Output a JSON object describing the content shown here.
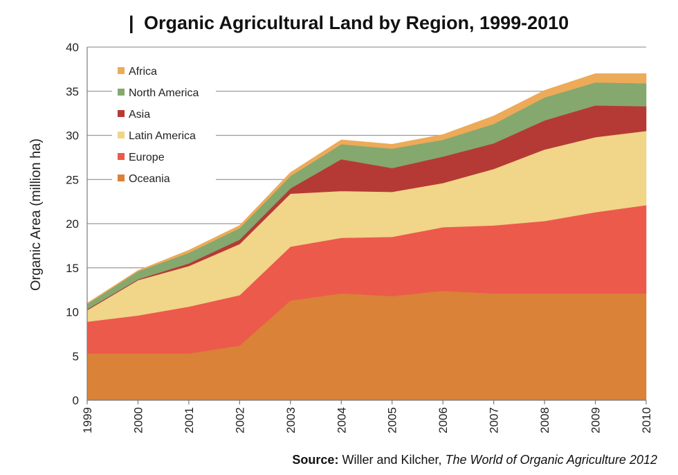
{
  "chart_data": {
    "type": "area",
    "stacked": true,
    "title_bar": "|",
    "title": "Organic Agricultural Land by Region, 1999-2010",
    "xlabel": "",
    "ylabel": "Organic Area (million ha)",
    "x": [
      "1999",
      "2000",
      "2001",
      "2002",
      "2003",
      "2004",
      "2005",
      "2006",
      "2007",
      "2008",
      "2009",
      "2010"
    ],
    "ylim": [
      0,
      40
    ],
    "yticks": [
      "0",
      "5",
      "10",
      "15",
      "20",
      "25",
      "30",
      "35",
      "40"
    ],
    "grid": true,
    "legend_position": "top-left",
    "series": [
      {
        "name": "Oceania",
        "color": "#D98238",
        "values": [
          5.3,
          5.3,
          5.3,
          6.2,
          11.3,
          12.1,
          11.8,
          12.4,
          12.1,
          12.1,
          12.1,
          12.1
        ]
      },
      {
        "name": "Europe",
        "color": "#EC5A4C",
        "values": [
          3.6,
          4.3,
          5.3,
          5.7,
          6.1,
          6.3,
          6.7,
          7.2,
          7.7,
          8.2,
          9.2,
          10.0
        ]
      },
      {
        "name": "Latin America",
        "color": "#F1D588",
        "values": [
          1.3,
          4.0,
          4.6,
          5.8,
          6.0,
          5.3,
          5.1,
          5.0,
          6.4,
          8.1,
          8.5,
          8.4
        ]
      },
      {
        "name": "Asia",
        "color": "#B53A36",
        "values": [
          0.1,
          0.1,
          0.3,
          0.5,
          0.6,
          3.6,
          2.7,
          3.0,
          2.9,
          3.3,
          3.6,
          2.8
        ]
      },
      {
        "name": "North America",
        "color": "#85A86F",
        "values": [
          0.6,
          0.9,
          1.2,
          1.3,
          1.4,
          1.7,
          2.2,
          1.9,
          2.2,
          2.6,
          2.6,
          2.6
        ]
      },
      {
        "name": "Africa",
        "color": "#EDAA59",
        "values": [
          0.1,
          0.1,
          0.3,
          0.3,
          0.4,
          0.5,
          0.5,
          0.6,
          0.9,
          0.8,
          1.0,
          1.1
        ]
      }
    ],
    "legend_order": [
      "Africa",
      "North America",
      "Asia",
      "Latin America",
      "Europe",
      "Oceania"
    ]
  },
  "source": {
    "label": "Source:",
    "authors": " Willer and Kilcher, ",
    "work": "The World of Organic Agriculture 2012"
  }
}
